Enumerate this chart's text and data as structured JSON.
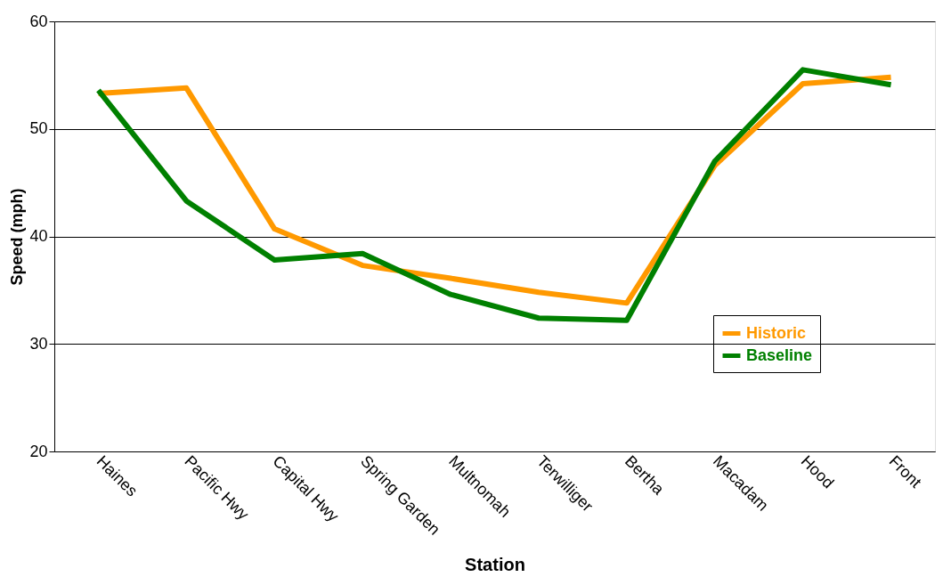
{
  "chart_data": {
    "type": "line",
    "xlabel": "Station",
    "ylabel": "Speed (mph)",
    "categories": [
      "Haines",
      "Pacific Hwy",
      "Capital Hwy",
      "Spring Garden",
      "Multnomah",
      "Terwilliger",
      "Bertha",
      "Macadam",
      "Hood",
      "Front"
    ],
    "series": [
      {
        "name": "Historic",
        "color": "#ff9900",
        "values": [
          53.3,
          53.8,
          40.7,
          37.3,
          36.1,
          34.8,
          33.8,
          46.6,
          54.2,
          54.8
        ]
      },
      {
        "name": "Baseline",
        "color": "#008000",
        "values": [
          53.6,
          43.3,
          37.8,
          38.4,
          34.6,
          32.4,
          32.2,
          47.0,
          55.5,
          54.1
        ]
      }
    ],
    "ylim": [
      20,
      60
    ],
    "yticks": [
      20,
      30,
      40,
      50,
      60
    ],
    "grid": "y",
    "legend": "bottom right",
    "marker": "none",
    "line_style": "solid"
  }
}
